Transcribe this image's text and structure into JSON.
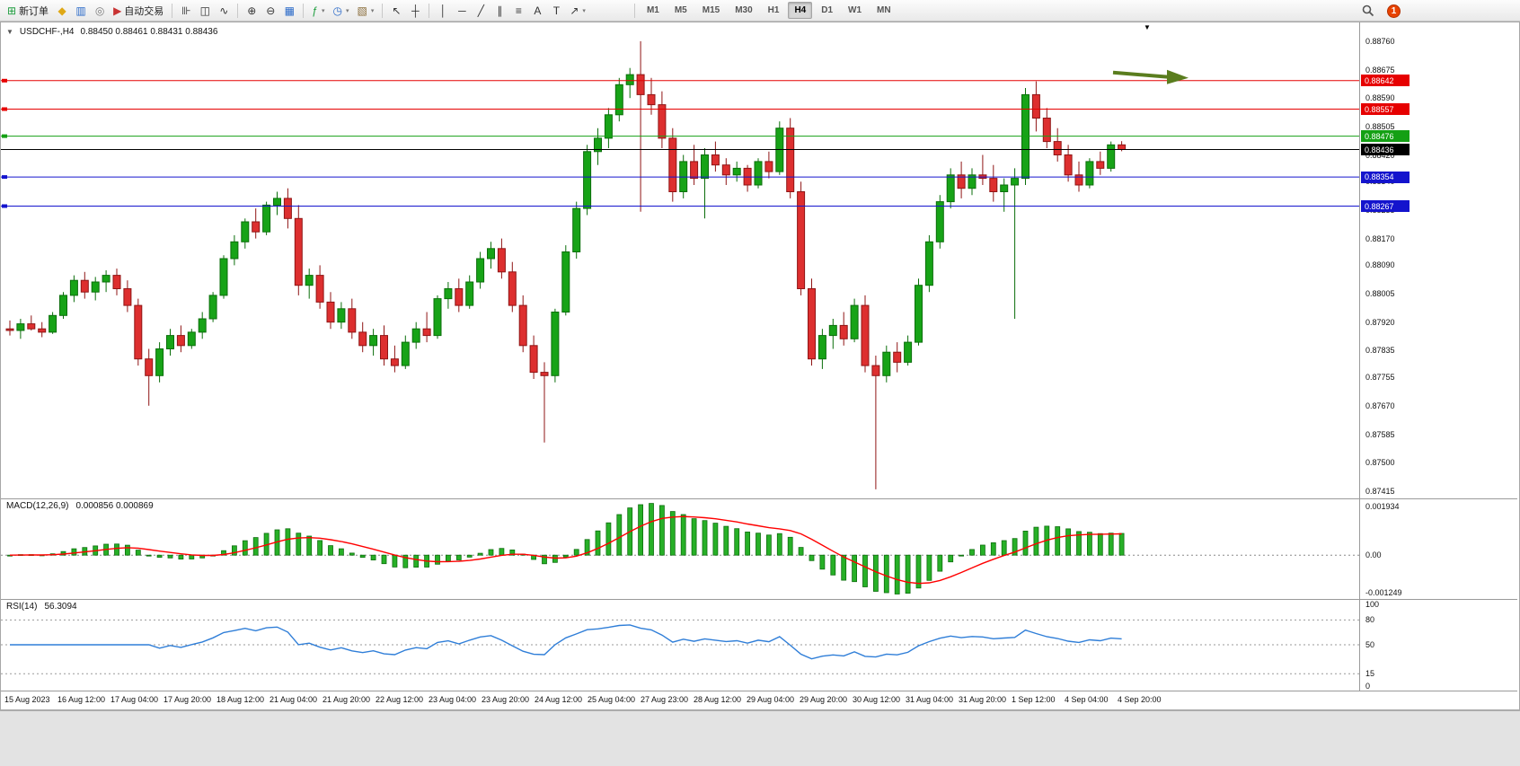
{
  "toolbar": {
    "groups": [
      {
        "items": [
          {
            "name": "new-order-button",
            "glyph": "⊞",
            "color": "#1e9e3e",
            "label": "新订单"
          },
          {
            "name": "market-watch-button",
            "glyph": "◆",
            "color": "#dfa816"
          },
          {
            "name": "chart-window-button",
            "glyph": "▥",
            "color": "#2868c8"
          },
          {
            "name": "navigator-button",
            "glyph": "◎",
            "color": "#7a7a7a"
          },
          {
            "name": "auto-trading-button",
            "glyph": "▶",
            "color": "#c83232",
            "label": "自动交易"
          }
        ]
      },
      {
        "items": [
          {
            "name": "bar-chart-button",
            "glyph": "⊪",
            "color": "#333333"
          },
          {
            "name": "candlestick-chart-button",
            "glyph": "◫",
            "color": "#333333"
          },
          {
            "name": "line-chart-button",
            "glyph": "∿",
            "color": "#333333"
          }
        ]
      },
      {
        "items": [
          {
            "name": "zoom-in-button",
            "glyph": "⊕",
            "color": "#333333"
          },
          {
            "name": "zoom-out-button",
            "glyph": "⊖",
            "color": "#333333"
          },
          {
            "name": "tile-windows-button",
            "glyph": "▦",
            "color": "#2868c8"
          }
        ]
      },
      {
        "items": [
          {
            "name": "insert-indicator-button",
            "glyph": "ƒ",
            "color": "#1e9e3e",
            "dropdown": true
          },
          {
            "name": "period-button",
            "glyph": "◷",
            "color": "#2868c8",
            "dropdown": true
          },
          {
            "name": "template-button",
            "glyph": "▧",
            "color": "#8a6d3b",
            "dropdown": true
          }
        ]
      },
      {
        "items": [
          {
            "name": "cursor-button",
            "glyph": "↖",
            "color": "#333333"
          },
          {
            "name": "crosshair-button",
            "glyph": "┼",
            "color": "#333333"
          }
        ]
      },
      {
        "items": [
          {
            "name": "vertical-line-button",
            "glyph": "│",
            "color": "#333333"
          },
          {
            "name": "horizontal-line-button",
            "glyph": "─",
            "color": "#333333"
          },
          {
            "name": "trendline-button",
            "glyph": "╱",
            "color": "#333333"
          },
          {
            "name": "channel-button",
            "glyph": "∥",
            "color": "#333333"
          },
          {
            "name": "fibonacci-button",
            "glyph": "≡",
            "color": "#333333"
          },
          {
            "name": "text-button",
            "glyph": "A",
            "color": "#333333"
          },
          {
            "name": "label-button",
            "glyph": "T",
            "color": "#333333"
          },
          {
            "name": "arrows-button",
            "glyph": "↗",
            "color": "#333333",
            "dropdown": true
          }
        ]
      }
    ],
    "timeframes": [
      "M1",
      "M5",
      "M15",
      "M30",
      "H1",
      "H4",
      "D1",
      "W1",
      "MN"
    ],
    "active_timeframe": "H4",
    "notification_count": "1"
  },
  "chart": {
    "dropdown_marker": "▼",
    "title": "USDCHF-,H4",
    "ohlc_text": "0.88450 0.88461 0.88431 0.88436"
  },
  "chart_data": {
    "type": "candlestick",
    "symbol": "USDCHF-",
    "timeframe": "H4",
    "shift_marker": "▼",
    "price_range": {
      "top": 0.88816,
      "bottom": 0.87393
    },
    "candle_colors": {
      "up": "#17a317",
      "down": "#dd2f2f",
      "up_border": "#0b6e0b",
      "down_border": "#8f1515"
    },
    "candles": [
      [
        0.879,
        0.87925,
        0.8788,
        0.87895
      ],
      [
        0.87895,
        0.8793,
        0.8787,
        0.87915
      ],
      [
        0.87915,
        0.8794,
        0.87895,
        0.879
      ],
      [
        0.879,
        0.8792,
        0.87875,
        0.8789
      ],
      [
        0.8789,
        0.8795,
        0.87885,
        0.8794
      ],
      [
        0.8794,
        0.8801,
        0.8793,
        0.88
      ],
      [
        0.88,
        0.8806,
        0.8798,
        0.88045
      ],
      [
        0.88045,
        0.8807,
        0.8799,
        0.8801
      ],
      [
        0.8801,
        0.88055,
        0.87985,
        0.8804
      ],
      [
        0.8804,
        0.88075,
        0.8801,
        0.8806
      ],
      [
        0.8806,
        0.8808,
        0.88,
        0.8802
      ],
      [
        0.8802,
        0.88045,
        0.8795,
        0.8797
      ],
      [
        0.8797,
        0.8799,
        0.8779,
        0.8781
      ],
      [
        0.8781,
        0.8784,
        0.8767,
        0.8776
      ],
      [
        0.8776,
        0.8786,
        0.8774,
        0.8784
      ],
      [
        0.8784,
        0.879,
        0.8782,
        0.8788
      ],
      [
        0.8788,
        0.8791,
        0.8783,
        0.8785
      ],
      [
        0.8785,
        0.879,
        0.8784,
        0.8789
      ],
      [
        0.8789,
        0.8795,
        0.8787,
        0.8793
      ],
      [
        0.8793,
        0.8801,
        0.8792,
        0.88
      ],
      [
        0.88,
        0.8812,
        0.8799,
        0.8811
      ],
      [
        0.8811,
        0.8818,
        0.8809,
        0.8816
      ],
      [
        0.8816,
        0.8823,
        0.8814,
        0.8822
      ],
      [
        0.8822,
        0.8826,
        0.8817,
        0.8819
      ],
      [
        0.8819,
        0.8828,
        0.8818,
        0.8827
      ],
      [
        0.8827,
        0.8831,
        0.8824,
        0.8829
      ],
      [
        0.8829,
        0.8832,
        0.882,
        0.8823
      ],
      [
        0.8823,
        0.8827,
        0.88,
        0.8803
      ],
      [
        0.8803,
        0.8808,
        0.8799,
        0.8806
      ],
      [
        0.8806,
        0.8809,
        0.8796,
        0.8798
      ],
      [
        0.8798,
        0.8801,
        0.879,
        0.8792
      ],
      [
        0.8792,
        0.8798,
        0.879,
        0.8796
      ],
      [
        0.8796,
        0.8799,
        0.8787,
        0.8789
      ],
      [
        0.8789,
        0.8792,
        0.8783,
        0.8785
      ],
      [
        0.8785,
        0.879,
        0.8782,
        0.8788
      ],
      [
        0.8788,
        0.8791,
        0.8779,
        0.8781
      ],
      [
        0.8781,
        0.8785,
        0.8777,
        0.8779
      ],
      [
        0.8779,
        0.8788,
        0.8778,
        0.8786
      ],
      [
        0.8786,
        0.8792,
        0.8784,
        0.879
      ],
      [
        0.879,
        0.8795,
        0.8786,
        0.8788
      ],
      [
        0.8788,
        0.88,
        0.8787,
        0.8799
      ],
      [
        0.8799,
        0.8804,
        0.8796,
        0.8802
      ],
      [
        0.8802,
        0.8805,
        0.8795,
        0.8797
      ],
      [
        0.8797,
        0.8806,
        0.8796,
        0.8804
      ],
      [
        0.8804,
        0.8813,
        0.8802,
        0.8811
      ],
      [
        0.8811,
        0.8816,
        0.8808,
        0.8814
      ],
      [
        0.8814,
        0.8817,
        0.8805,
        0.8807
      ],
      [
        0.8807,
        0.881,
        0.8795,
        0.8797
      ],
      [
        0.8797,
        0.88,
        0.8783,
        0.8785
      ],
      [
        0.8785,
        0.8788,
        0.8775,
        0.8777
      ],
      [
        0.8777,
        0.878,
        0.8756,
        0.8776
      ],
      [
        0.8776,
        0.8796,
        0.8774,
        0.8795
      ],
      [
        0.8795,
        0.8815,
        0.8794,
        0.8813
      ],
      [
        0.8813,
        0.8828,
        0.8811,
        0.8826
      ],
      [
        0.8826,
        0.8845,
        0.8824,
        0.8843
      ],
      [
        0.8843,
        0.885,
        0.8839,
        0.8847
      ],
      [
        0.8847,
        0.8856,
        0.8844,
        0.8854
      ],
      [
        0.8854,
        0.8865,
        0.8852,
        0.8863
      ],
      [
        0.8863,
        0.8868,
        0.8859,
        0.8866
      ],
      [
        0.8866,
        0.8876,
        0.8825,
        0.886
      ],
      [
        0.886,
        0.8865,
        0.8854,
        0.8857
      ],
      [
        0.8857,
        0.8861,
        0.8844,
        0.8847
      ],
      [
        0.8847,
        0.885,
        0.8828,
        0.8831
      ],
      [
        0.8831,
        0.8842,
        0.8829,
        0.884
      ],
      [
        0.884,
        0.8845,
        0.8833,
        0.8835
      ],
      [
        0.8835,
        0.8844,
        0.8823,
        0.8842
      ],
      [
        0.8842,
        0.8846,
        0.8837,
        0.8839
      ],
      [
        0.8839,
        0.8841,
        0.8833,
        0.8836
      ],
      [
        0.8836,
        0.884,
        0.8834,
        0.8838
      ],
      [
        0.8838,
        0.8839,
        0.8831,
        0.8833
      ],
      [
        0.8833,
        0.8841,
        0.8832,
        0.884
      ],
      [
        0.884,
        0.8843,
        0.8835,
        0.8837
      ],
      [
        0.8837,
        0.8852,
        0.8836,
        0.885
      ],
      [
        0.885,
        0.8853,
        0.8829,
        0.8831
      ],
      [
        0.8831,
        0.8834,
        0.88,
        0.8802
      ],
      [
        0.8802,
        0.8805,
        0.8779,
        0.8781
      ],
      [
        0.8781,
        0.879,
        0.8778,
        0.8788
      ],
      [
        0.8788,
        0.8793,
        0.8784,
        0.8791
      ],
      [
        0.8791,
        0.8795,
        0.8785,
        0.8787
      ],
      [
        0.8787,
        0.8799,
        0.8786,
        0.8797
      ],
      [
        0.8797,
        0.88,
        0.8777,
        0.8779
      ],
      [
        0.8779,
        0.8782,
        0.8742,
        0.8776
      ],
      [
        0.8776,
        0.8785,
        0.8774,
        0.8783
      ],
      [
        0.8783,
        0.8786,
        0.8777,
        0.878
      ],
      [
        0.878,
        0.8788,
        0.8779,
        0.8786
      ],
      [
        0.8786,
        0.8805,
        0.8785,
        0.8803
      ],
      [
        0.8803,
        0.8818,
        0.8801,
        0.8816
      ],
      [
        0.8816,
        0.883,
        0.8814,
        0.8828
      ],
      [
        0.8828,
        0.8838,
        0.8826,
        0.8836
      ],
      [
        0.8836,
        0.884,
        0.8829,
        0.8832
      ],
      [
        0.8832,
        0.8838,
        0.883,
        0.8836
      ],
      [
        0.8836,
        0.8842,
        0.8833,
        0.8835
      ],
      [
        0.8835,
        0.8839,
        0.8828,
        0.8831
      ],
      [
        0.8831,
        0.8835,
        0.8825,
        0.8833
      ],
      [
        0.8833,
        0.8838,
        0.8793,
        0.8835
      ],
      [
        0.8835,
        0.8862,
        0.8833,
        0.886
      ],
      [
        0.886,
        0.8864,
        0.8849,
        0.8853
      ],
      [
        0.8853,
        0.8856,
        0.8844,
        0.8846
      ],
      [
        0.8846,
        0.885,
        0.884,
        0.8842
      ],
      [
        0.8842,
        0.8845,
        0.8834,
        0.8836
      ],
      [
        0.8836,
        0.884,
        0.8831,
        0.8833
      ],
      [
        0.8833,
        0.8841,
        0.8832,
        0.884
      ],
      [
        0.884,
        0.8843,
        0.8836,
        0.8838
      ],
      [
        0.8838,
        0.8846,
        0.8837,
        0.8845
      ],
      [
        0.8845,
        0.88461,
        0.88431,
        0.88436
      ]
    ],
    "price_ticks": [
      "0.88760",
      "0.88675",
      "0.88590",
      "0.88505",
      "0.88420",
      "0.88340",
      "0.88255",
      "0.88170",
      "0.88090",
      "0.88005",
      "0.87920",
      "0.87835",
      "0.87755",
      "0.87670",
      "0.87585",
      "0.87500",
      "0.87415"
    ],
    "hlines": [
      {
        "price": 0.88642,
        "label": "0.88642",
        "color": "#e60000"
      },
      {
        "price": 0.88557,
        "label": "0.88557",
        "color": "#e60000"
      },
      {
        "price": 0.88476,
        "label": "0.88476",
        "color": "#14a014"
      },
      {
        "price": 0.88354,
        "label": "0.88354",
        "color": "#1414cd"
      },
      {
        "price": 0.88267,
        "label": "0.88267",
        "color": "#1414cd"
      }
    ],
    "current_price": {
      "price": 0.88436,
      "label": "0.88436",
      "color": "#000000"
    },
    "annotation_arrow": {
      "color": "#5a7d1e"
    },
    "macd": {
      "title": "MACD(12,26,9)",
      "values_text": "0.000856 0.000869",
      "params": {
        "fast": 12,
        "slow": 26,
        "signal": 9
      },
      "axis_max": "0.001934",
      "axis_zero": "0.00",
      "axis_min": "-0.001249",
      "histogram_color": "#27b027",
      "histogram_border": "#0e6e0e",
      "signal_color": "#ff0000"
    },
    "rsi": {
      "title": "RSI(14)",
      "value_text": "56.3094",
      "period": 14,
      "levels": [
        80,
        50,
        15
      ],
      "axis_labels": [
        "100",
        "80",
        "50",
        "15",
        "0"
      ],
      "line_color": "#2f7ed8"
    },
    "time_labels": [
      "15 Aug 2023",
      "16 Aug 12:00",
      "17 Aug 04:00",
      "17 Aug 20:00",
      "18 Aug 12:00",
      "21 Aug 04:00",
      "21 Aug 20:00",
      "22 Aug 12:00",
      "23 Aug 04:00",
      "23 Aug 20:00",
      "24 Aug 12:00",
      "25 Aug 04:00",
      "27 Aug 23:00",
      "28 Aug 12:00",
      "29 Aug 04:00",
      "29 Aug 20:00",
      "30 Aug 12:00",
      "31 Aug 04:00",
      "31 Aug 20:00",
      "1 Sep 12:00",
      "4 Sep 04:00",
      "4 Sep 20:00"
    ]
  }
}
